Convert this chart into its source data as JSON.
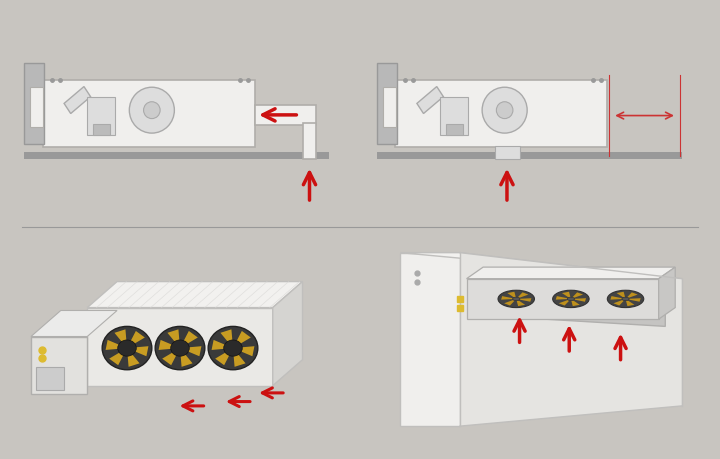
{
  "bg_color": "#c8c5c0",
  "unit_fill": "#f0efed",
  "unit_edge": "#b0aeaa",
  "dark_gray": "#888888",
  "mid_gray": "#aaaaaa",
  "light_gray": "#d8d7d5",
  "arrow_color": "#cc1111",
  "dim_line_color": "#cc3333",
  "divider_color": "#999999",
  "fig_width": 7.2,
  "fig_height": 4.6
}
